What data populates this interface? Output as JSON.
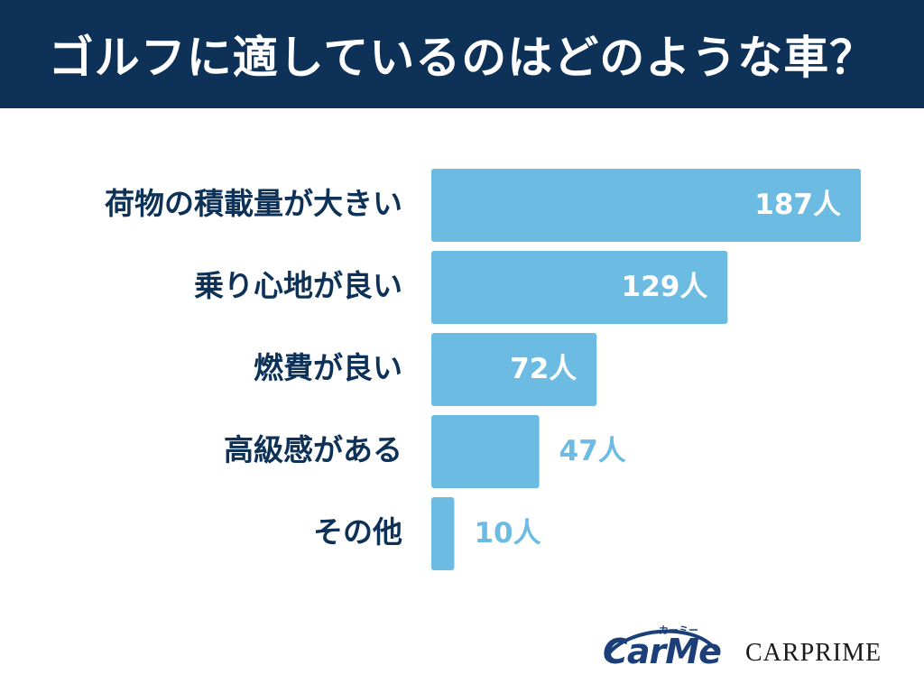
{
  "header": {
    "title": "ゴルフに適しているのはどのような車？",
    "background_color": "#0e3157"
  },
  "chart_data": {
    "type": "bar",
    "orientation": "horizontal",
    "title": "ゴルフに適しているのはどのような車？",
    "categories": [
      "荷物の積載量が大きい",
      "乗り心地が良い",
      "燃費が良い",
      "高級感がある",
      "その他"
    ],
    "values": [
      187,
      129,
      72,
      47,
      10
    ],
    "value_labels": [
      "187人",
      "129人",
      "72人",
      "47人",
      "10人"
    ],
    "unit": "人",
    "xlim": [
      0,
      187
    ],
    "bar_color": "#6bbbe3",
    "label_color": "#0e3157",
    "grid": false,
    "legend": "none"
  },
  "logos": {
    "carme_text": "CarMe",
    "carme_kana": "カーミー",
    "carprime_text": "CARPRIME"
  }
}
